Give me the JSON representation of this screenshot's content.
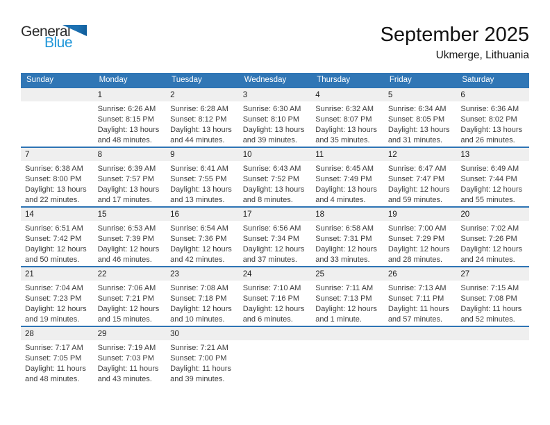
{
  "logo": {
    "general": "General",
    "blue": "Blue"
  },
  "title": "September 2025",
  "subtitle": "Ukmerge, Lithuania",
  "weekday_headers": [
    "Sunday",
    "Monday",
    "Tuesday",
    "Wednesday",
    "Thursday",
    "Friday",
    "Saturday"
  ],
  "colors": {
    "header-bg": "#3076b5",
    "row-line": "#2e74b4",
    "band-bg": "#efefef",
    "logo-blue": "#1f96d8",
    "triangle-blue": "#1d71b2"
  },
  "weeks": [
    [
      null,
      {
        "day": "1",
        "sunrise": "Sunrise: 6:26 AM",
        "sunset": "Sunset: 8:15 PM",
        "daylight1": "Daylight: 13 hours",
        "daylight2": "and 48 minutes."
      },
      {
        "day": "2",
        "sunrise": "Sunrise: 6:28 AM",
        "sunset": "Sunset: 8:12 PM",
        "daylight1": "Daylight: 13 hours",
        "daylight2": "and 44 minutes."
      },
      {
        "day": "3",
        "sunrise": "Sunrise: 6:30 AM",
        "sunset": "Sunset: 8:10 PM",
        "daylight1": "Daylight: 13 hours",
        "daylight2": "and 39 minutes."
      },
      {
        "day": "4",
        "sunrise": "Sunrise: 6:32 AM",
        "sunset": "Sunset: 8:07 PM",
        "daylight1": "Daylight: 13 hours",
        "daylight2": "and 35 minutes."
      },
      {
        "day": "5",
        "sunrise": "Sunrise: 6:34 AM",
        "sunset": "Sunset: 8:05 PM",
        "daylight1": "Daylight: 13 hours",
        "daylight2": "and 31 minutes."
      },
      {
        "day": "6",
        "sunrise": "Sunrise: 6:36 AM",
        "sunset": "Sunset: 8:02 PM",
        "daylight1": "Daylight: 13 hours",
        "daylight2": "and 26 minutes."
      }
    ],
    [
      {
        "day": "7",
        "sunrise": "Sunrise: 6:38 AM",
        "sunset": "Sunset: 8:00 PM",
        "daylight1": "Daylight: 13 hours",
        "daylight2": "and 22 minutes."
      },
      {
        "day": "8",
        "sunrise": "Sunrise: 6:39 AM",
        "sunset": "Sunset: 7:57 PM",
        "daylight1": "Daylight: 13 hours",
        "daylight2": "and 17 minutes."
      },
      {
        "day": "9",
        "sunrise": "Sunrise: 6:41 AM",
        "sunset": "Sunset: 7:55 PM",
        "daylight1": "Daylight: 13 hours",
        "daylight2": "and 13 minutes."
      },
      {
        "day": "10",
        "sunrise": "Sunrise: 6:43 AM",
        "sunset": "Sunset: 7:52 PM",
        "daylight1": "Daylight: 13 hours",
        "daylight2": "and 8 minutes."
      },
      {
        "day": "11",
        "sunrise": "Sunrise: 6:45 AM",
        "sunset": "Sunset: 7:49 PM",
        "daylight1": "Daylight: 13 hours",
        "daylight2": "and 4 minutes."
      },
      {
        "day": "12",
        "sunrise": "Sunrise: 6:47 AM",
        "sunset": "Sunset: 7:47 PM",
        "daylight1": "Daylight: 12 hours",
        "daylight2": "and 59 minutes."
      },
      {
        "day": "13",
        "sunrise": "Sunrise: 6:49 AM",
        "sunset": "Sunset: 7:44 PM",
        "daylight1": "Daylight: 12 hours",
        "daylight2": "and 55 minutes."
      }
    ],
    [
      {
        "day": "14",
        "sunrise": "Sunrise: 6:51 AM",
        "sunset": "Sunset: 7:42 PM",
        "daylight1": "Daylight: 12 hours",
        "daylight2": "and 50 minutes."
      },
      {
        "day": "15",
        "sunrise": "Sunrise: 6:53 AM",
        "sunset": "Sunset: 7:39 PM",
        "daylight1": "Daylight: 12 hours",
        "daylight2": "and 46 minutes."
      },
      {
        "day": "16",
        "sunrise": "Sunrise: 6:54 AM",
        "sunset": "Sunset: 7:36 PM",
        "daylight1": "Daylight: 12 hours",
        "daylight2": "and 42 minutes."
      },
      {
        "day": "17",
        "sunrise": "Sunrise: 6:56 AM",
        "sunset": "Sunset: 7:34 PM",
        "daylight1": "Daylight: 12 hours",
        "daylight2": "and 37 minutes."
      },
      {
        "day": "18",
        "sunrise": "Sunrise: 6:58 AM",
        "sunset": "Sunset: 7:31 PM",
        "daylight1": "Daylight: 12 hours",
        "daylight2": "and 33 minutes."
      },
      {
        "day": "19",
        "sunrise": "Sunrise: 7:00 AM",
        "sunset": "Sunset: 7:29 PM",
        "daylight1": "Daylight: 12 hours",
        "daylight2": "and 28 minutes."
      },
      {
        "day": "20",
        "sunrise": "Sunrise: 7:02 AM",
        "sunset": "Sunset: 7:26 PM",
        "daylight1": "Daylight: 12 hours",
        "daylight2": "and 24 minutes."
      }
    ],
    [
      {
        "day": "21",
        "sunrise": "Sunrise: 7:04 AM",
        "sunset": "Sunset: 7:23 PM",
        "daylight1": "Daylight: 12 hours",
        "daylight2": "and 19 minutes."
      },
      {
        "day": "22",
        "sunrise": "Sunrise: 7:06 AM",
        "sunset": "Sunset: 7:21 PM",
        "daylight1": "Daylight: 12 hours",
        "daylight2": "and 15 minutes."
      },
      {
        "day": "23",
        "sunrise": "Sunrise: 7:08 AM",
        "sunset": "Sunset: 7:18 PM",
        "daylight1": "Daylight: 12 hours",
        "daylight2": "and 10 minutes."
      },
      {
        "day": "24",
        "sunrise": "Sunrise: 7:10 AM",
        "sunset": "Sunset: 7:16 PM",
        "daylight1": "Daylight: 12 hours",
        "daylight2": "and 6 minutes."
      },
      {
        "day": "25",
        "sunrise": "Sunrise: 7:11 AM",
        "sunset": "Sunset: 7:13 PM",
        "daylight1": "Daylight: 12 hours",
        "daylight2": "and 1 minute."
      },
      {
        "day": "26",
        "sunrise": "Sunrise: 7:13 AM",
        "sunset": "Sunset: 7:11 PM",
        "daylight1": "Daylight: 11 hours",
        "daylight2": "and 57 minutes."
      },
      {
        "day": "27",
        "sunrise": "Sunrise: 7:15 AM",
        "sunset": "Sunset: 7:08 PM",
        "daylight1": "Daylight: 11 hours",
        "daylight2": "and 52 minutes."
      }
    ],
    [
      {
        "day": "28",
        "sunrise": "Sunrise: 7:17 AM",
        "sunset": "Sunset: 7:05 PM",
        "daylight1": "Daylight: 11 hours",
        "daylight2": "and 48 minutes."
      },
      {
        "day": "29",
        "sunrise": "Sunrise: 7:19 AM",
        "sunset": "Sunset: 7:03 PM",
        "daylight1": "Daylight: 11 hours",
        "daylight2": "and 43 minutes."
      },
      {
        "day": "30",
        "sunrise": "Sunrise: 7:21 AM",
        "sunset": "Sunset: 7:00 PM",
        "daylight1": "Daylight: 11 hours",
        "daylight2": "and 39 minutes."
      },
      null,
      null,
      null,
      null
    ]
  ]
}
